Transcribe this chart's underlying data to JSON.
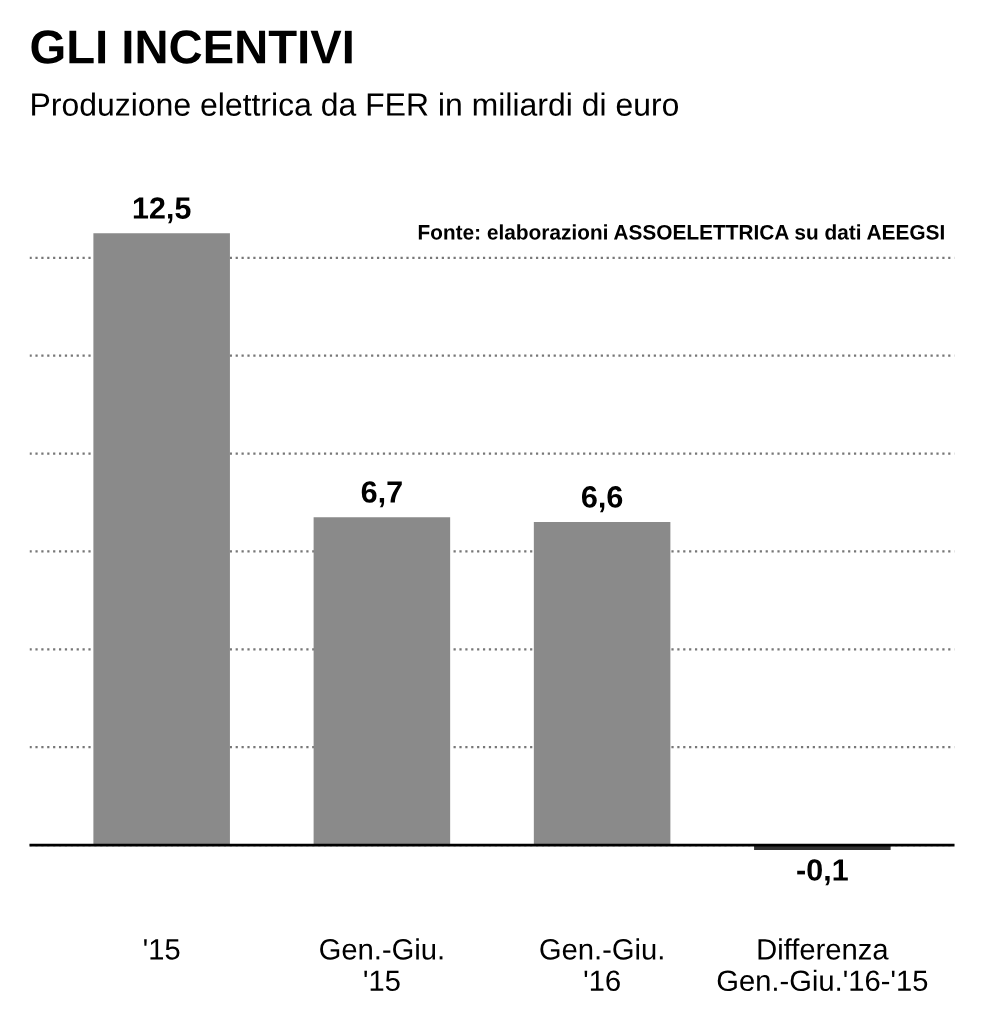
{
  "chart_data": {
    "type": "bar",
    "title": "GLI INCENTIVI",
    "subtitle": "Produzione elettrica da FER in miliardi di euro",
    "categories": [
      "'15",
      "Gen.-Giu.\n'15",
      "Gen.-Giu.\n'16",
      "Differenza\nGen.-Giu.'16-'15"
    ],
    "values": [
      12.5,
      6.7,
      6.6,
      -0.1
    ],
    "value_labels": [
      "12,5",
      "6,7",
      "6,6",
      "-0,1"
    ],
    "colors": [
      "#8a8a8a",
      "#8a8a8a",
      "#8a8a8a",
      "#333333"
    ],
    "tick_labels": "x",
    "grid": "y",
    "annotations": [
      "Fonte: elaborazioni ASSOELETTRICA su dati AEEGSI"
    ]
  }
}
